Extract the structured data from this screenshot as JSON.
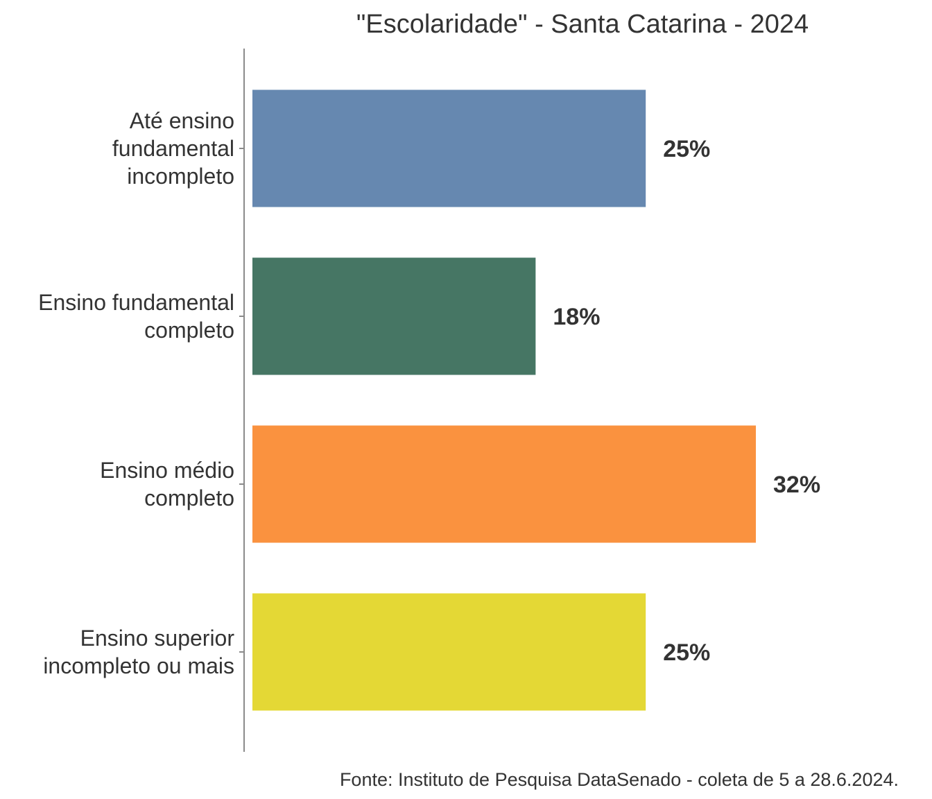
{
  "chart_data": {
    "type": "bar",
    "orientation": "horizontal",
    "title": "\"Escolaridade\" - Santa Catarina - 2024",
    "categories": [
      [
        "Até ensino",
        "fundamental",
        "incompleto"
      ],
      [
        "Ensino fundamental",
        "completo"
      ],
      [
        "Ensino médio",
        "completo"
      ],
      [
        "Ensino superior",
        "incompleto ou mais"
      ]
    ],
    "values": [
      25,
      18,
      32,
      25
    ],
    "value_labels": [
      "25%",
      "18%",
      "32%",
      "25%"
    ],
    "colors": [
      "#6688b0",
      "#467664",
      "#fa923f",
      "#e4d835"
    ],
    "xlim": [
      0,
      32
    ],
    "grid": false,
    "legend": "none",
    "source": "Fonte: Instituto de Pesquisa DataSenado - coleta de 5 a 28.6.2024."
  }
}
